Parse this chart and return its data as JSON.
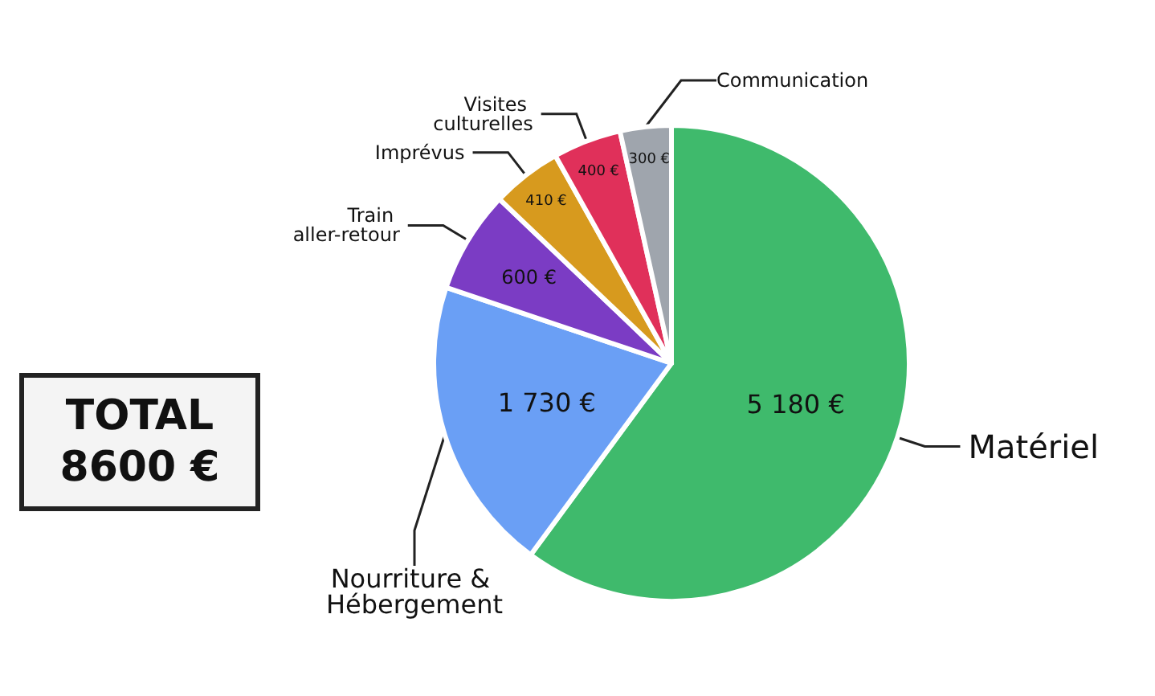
{
  "chart_data": {
    "type": "pie",
    "categories": [
      "Matériel",
      "Nourriture & Hébergement",
      "Train aller-retour",
      "Imprévus",
      "Visites culturelles",
      "Communication"
    ],
    "values": [
      5180,
      1730,
      600,
      410,
      400,
      300
    ],
    "value_labels": [
      "5 180 €",
      "1 730 €",
      "600 €",
      "410 €",
      "400 €",
      "300 €"
    ],
    "colors": [
      "#3fba6c",
      "#6a9ff5",
      "#7b3cc4",
      "#d79a1e",
      "#e0305a",
      "#9fa5ad"
    ],
    "annotations": [
      "TOTAL 8600 €"
    ],
    "legend": false
  }
}
